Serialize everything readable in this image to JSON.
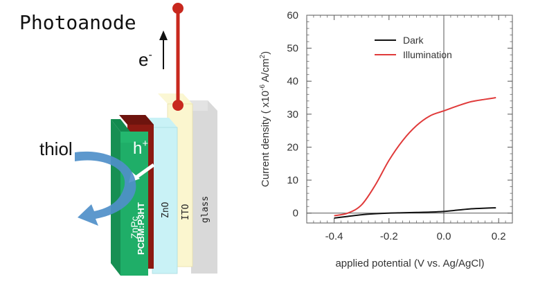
{
  "diagram": {
    "title": "Photoanode",
    "electron_label": "e",
    "electron_sup": "-",
    "hole_label": "h",
    "hole_sup": "+",
    "thiol_label": "thiol",
    "layers": [
      "ZnPc",
      "PCBM:P3HT",
      "ZnO",
      "ITO",
      "glass"
    ],
    "colors": {
      "ZnPc": "#1fae68",
      "PCBM_P3HT": "#8b1a12",
      "ZnO": "#c9f2f6",
      "ITO": "#fbf6cf",
      "glass": "#d9d9d9",
      "wire": "#c8281e",
      "thiol_arrow": "#4f8fc9"
    }
  },
  "chart_data": {
    "type": "line",
    "title": "",
    "xlabel": "applied potential (V vs. Ag/AgCl)",
    "ylabel_prefix": "Current density ( x10",
    "ylabel_exp": "-6",
    "ylabel_unit": " A/cm",
    "ylabel_unit_exp": "2",
    "ylabel_suffix": ")",
    "xlim": [
      -0.5,
      0.25
    ],
    "ylim": [
      -3,
      60
    ],
    "xticks": [
      -0.4,
      -0.2,
      0.0,
      0.2
    ],
    "xtick_labels": [
      "-0.4",
      "-0.2",
      "0.0",
      "0.2"
    ],
    "yticks": [
      0,
      10,
      20,
      30,
      40,
      50,
      60
    ],
    "ytick_labels": [
      "0",
      "10",
      "20",
      "30",
      "40",
      "50",
      "60"
    ],
    "legend_position": "top-right",
    "grid": false,
    "series": [
      {
        "name": "Dark",
        "color": "#111111",
        "x": [
          -0.4,
          -0.35,
          -0.3,
          -0.25,
          -0.2,
          -0.15,
          -0.1,
          -0.05,
          0.0,
          0.05,
          0.1,
          0.15,
          0.19
        ],
        "y": [
          -1.5,
          -1.0,
          -0.5,
          -0.2,
          0.0,
          0.1,
          0.2,
          0.3,
          0.5,
          0.9,
          1.3,
          1.5,
          1.6
        ]
      },
      {
        "name": "Illumination",
        "color": "#e03a3a",
        "x": [
          -0.4,
          -0.35,
          -0.3,
          -0.25,
          -0.2,
          -0.15,
          -0.1,
          -0.05,
          0.0,
          0.05,
          0.1,
          0.15,
          0.19
        ],
        "y": [
          -0.8,
          0.0,
          2.5,
          8.5,
          16.0,
          22.0,
          26.5,
          29.5,
          31.0,
          32.5,
          33.8,
          34.5,
          35.0
        ]
      }
    ]
  }
}
